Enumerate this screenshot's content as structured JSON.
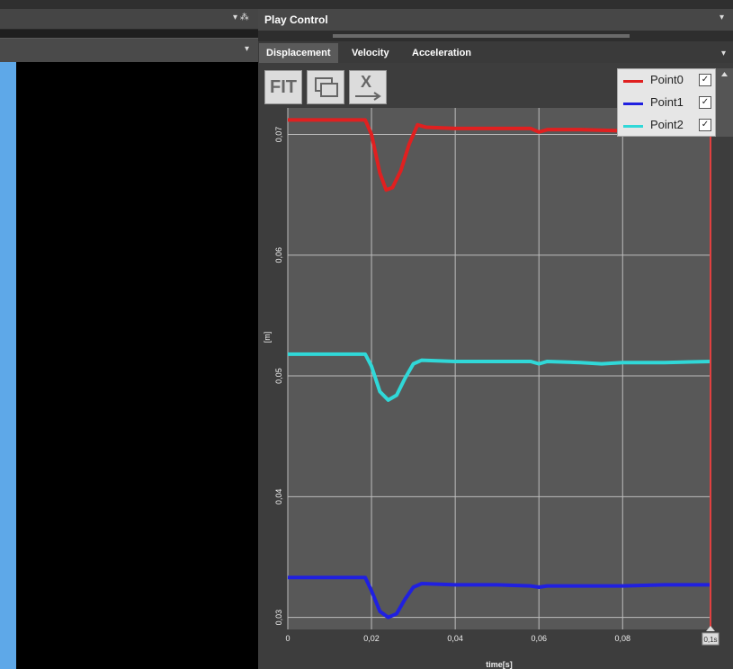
{
  "left_panel": {
    "header_controls": "▾ ⁂",
    "header2_controls": "▾"
  },
  "play_control": {
    "title": "Play Control",
    "controls": "▾"
  },
  "tabs": [
    {
      "label": "Displacement",
      "active": true
    },
    {
      "label": "Velocity",
      "active": false
    },
    {
      "label": "Acceleration",
      "active": false
    }
  ],
  "tabs_controls": "▾",
  "toolbar": {
    "fit_label": "FIT",
    "x_label": "X"
  },
  "legend": [
    {
      "name": "Point0",
      "color": "#e02020",
      "checked": true
    },
    {
      "name": "Point1",
      "color": "#2020e0",
      "checked": true
    },
    {
      "name": "Point2",
      "color": "#30d8d8",
      "checked": true
    }
  ],
  "chart_data": {
    "type": "line",
    "xlabel": "time[s]",
    "ylabel": "[m]",
    "x_ticks": [
      "0",
      "0,02",
      "0,04",
      "0,06",
      "0,08"
    ],
    "y_ticks": [
      "0,07",
      "0,06",
      "0,05",
      "0,04",
      "0,03"
    ],
    "end_marker_label": "0,1s",
    "xlim": [
      0,
      0.101
    ],
    "ylim": [
      0.029,
      0.0722
    ],
    "grid": true,
    "series": [
      {
        "name": "Point0",
        "color": "#e02020",
        "x": [
          0,
          0.009,
          0.0185,
          0.02,
          0.022,
          0.0235,
          0.025,
          0.027,
          0.029,
          0.031,
          0.033,
          0.04,
          0.05,
          0.058,
          0.06,
          0.062,
          0.07,
          0.08,
          0.09,
          0.101
        ],
        "y": [
          0.0712,
          0.0712,
          0.0712,
          0.07,
          0.0668,
          0.0654,
          0.0656,
          0.067,
          0.0692,
          0.0708,
          0.0706,
          0.0705,
          0.0705,
          0.0705,
          0.0702,
          0.0704,
          0.0704,
          0.0703,
          0.0703,
          0.0703
        ]
      },
      {
        "name": "Point2",
        "color": "#30d8d8",
        "x": [
          0,
          0.009,
          0.0185,
          0.02,
          0.022,
          0.024,
          0.026,
          0.028,
          0.03,
          0.032,
          0.04,
          0.05,
          0.058,
          0.06,
          0.062,
          0.07,
          0.075,
          0.08,
          0.09,
          0.101
        ],
        "y": [
          0.0518,
          0.0518,
          0.0518,
          0.0508,
          0.0487,
          0.048,
          0.0484,
          0.0498,
          0.051,
          0.0513,
          0.0512,
          0.0512,
          0.0512,
          0.051,
          0.0512,
          0.0511,
          0.051,
          0.0511,
          0.0511,
          0.0512
        ]
      },
      {
        "name": "Point1",
        "color": "#2020e0",
        "x": [
          0,
          0.009,
          0.0185,
          0.02,
          0.022,
          0.024,
          0.026,
          0.028,
          0.03,
          0.032,
          0.04,
          0.05,
          0.058,
          0.06,
          0.062,
          0.07,
          0.08,
          0.09,
          0.101
        ],
        "y": [
          0.0333,
          0.0333,
          0.0333,
          0.0322,
          0.0305,
          0.03,
          0.0303,
          0.0315,
          0.0325,
          0.0328,
          0.0327,
          0.0327,
          0.0326,
          0.0325,
          0.0326,
          0.0326,
          0.0326,
          0.0327,
          0.0327
        ]
      }
    ]
  }
}
